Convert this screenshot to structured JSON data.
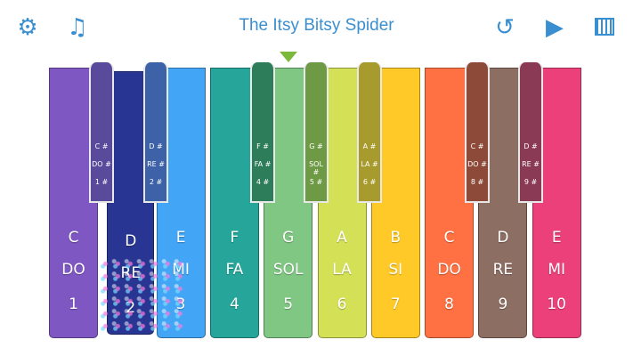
{
  "header": {
    "title": "The Itsy Bitsy Spider",
    "icons": [
      "gear-icon",
      "music-note-icon",
      "replay-icon",
      "play-icon",
      "keyboard-icon"
    ]
  },
  "white_keys": [
    {
      "note": "C",
      "solfege": "DO",
      "number": "1",
      "color": "#7e57c2"
    },
    {
      "note": "D",
      "solfege": "RE",
      "number": "2",
      "color": "#283593",
      "pressed": true
    },
    {
      "note": "E",
      "solfege": "MI",
      "number": "3",
      "color": "#42a5f5"
    },
    {
      "note": "F",
      "solfege": "FA",
      "number": "4",
      "color": "#26a69a"
    },
    {
      "note": "G",
      "solfege": "SOL",
      "number": "5",
      "color": "#81c784"
    },
    {
      "note": "A",
      "solfege": "LA",
      "number": "6",
      "color": "#d4e157"
    },
    {
      "note": "B",
      "solfege": "SI",
      "number": "7",
      "color": "#ffca28"
    },
    {
      "note": "C",
      "solfege": "DO",
      "number": "8",
      "color": "#ff7043"
    },
    {
      "note": "D",
      "solfege": "RE",
      "number": "9",
      "color": "#8d6e63"
    },
    {
      "note": "E",
      "solfege": "MI",
      "number": "10",
      "color": "#ec407a"
    }
  ],
  "black_keys": [
    {
      "note": "C #",
      "solfege": "DO #",
      "number": "1 #",
      "color": "#5a4a9c"
    },
    {
      "note": "D #",
      "solfege": "RE #",
      "number": "2 #",
      "color": "#3d62a8"
    },
    {
      "note": "F #",
      "solfege": "FA #",
      "number": "4 #",
      "color": "#2e7d5a"
    },
    {
      "note": "G #",
      "solfege": "SOL #",
      "number": "5 #",
      "color": "#6e9a45"
    },
    {
      "note": "A #",
      "solfege": "LA #",
      "number": "6 #",
      "color": "#a89b2e"
    },
    {
      "note": "C #",
      "solfege": "DO #",
      "number": "8 #",
      "color": "#8d4a38"
    },
    {
      "note": "D #",
      "solfege": "RE #",
      "number": "9 #",
      "color": "#8a3a55"
    }
  ]
}
